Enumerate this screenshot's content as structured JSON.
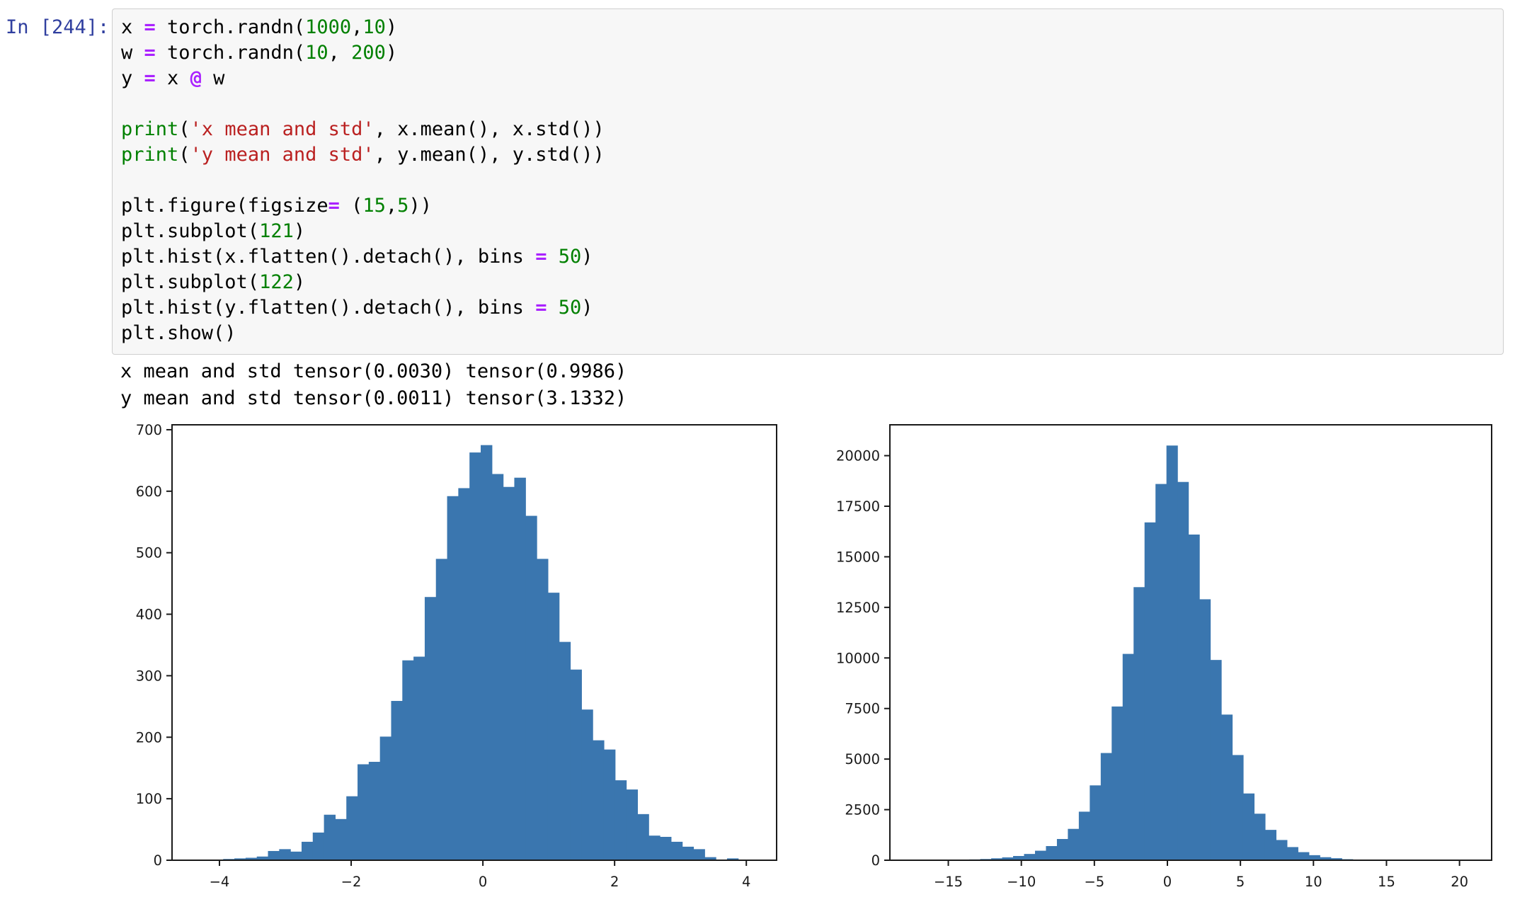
{
  "cell": {
    "prompt": "In [244]:",
    "prompt_color": "#303F9F",
    "token_colors": {
      "p": "#000000",
      "o": "#AA22FF",
      "n": "#008000",
      "b": "#008000",
      "s": "#BA2121"
    },
    "code_lines": [
      [
        [
          "x ",
          "p"
        ],
        [
          "=",
          "o"
        ],
        [
          " torch.randn(",
          "p"
        ],
        [
          "1000",
          "n"
        ],
        [
          ",",
          "p"
        ],
        [
          "10",
          "n"
        ],
        [
          ")",
          "p"
        ]
      ],
      [
        [
          "w ",
          "p"
        ],
        [
          "=",
          "o"
        ],
        [
          " torch.randn(",
          "p"
        ],
        [
          "10",
          "n"
        ],
        [
          ", ",
          "p"
        ],
        [
          "200",
          "n"
        ],
        [
          ")",
          "p"
        ]
      ],
      [
        [
          "y ",
          "p"
        ],
        [
          "=",
          "o"
        ],
        [
          " x ",
          "p"
        ],
        [
          "@",
          "o"
        ],
        [
          " w",
          "p"
        ]
      ],
      [],
      [
        [
          "print",
          "b"
        ],
        [
          "(",
          "p"
        ],
        [
          "'x mean and std'",
          "s"
        ],
        [
          ", x.mean(), x.std())",
          "p"
        ]
      ],
      [
        [
          "print",
          "b"
        ],
        [
          "(",
          "p"
        ],
        [
          "'y mean and std'",
          "s"
        ],
        [
          ", y.mean(), y.std())",
          "p"
        ]
      ],
      [],
      [
        [
          "plt.figure(figsize",
          "p"
        ],
        [
          "=",
          "o"
        ],
        [
          " (",
          "p"
        ],
        [
          "15",
          "n"
        ],
        [
          ",",
          "p"
        ],
        [
          "5",
          "n"
        ],
        [
          "))",
          "p"
        ]
      ],
      [
        [
          "plt.subplot(",
          "p"
        ],
        [
          "121",
          "n"
        ],
        [
          ")",
          "p"
        ]
      ],
      [
        [
          "plt.hist(x.flatten().detach(), bins ",
          "p"
        ],
        [
          "=",
          "o"
        ],
        [
          " ",
          "p"
        ],
        [
          "50",
          "n"
        ],
        [
          ")",
          "p"
        ]
      ],
      [
        [
          "plt.subplot(",
          "p"
        ],
        [
          "122",
          "n"
        ],
        [
          ")",
          "p"
        ]
      ],
      [
        [
          "plt.hist(y.flatten().detach(), bins ",
          "p"
        ],
        [
          "=",
          "o"
        ],
        [
          " ",
          "p"
        ],
        [
          "50",
          "n"
        ],
        [
          ")",
          "p"
        ]
      ],
      [
        [
          "plt.show()",
          "p"
        ]
      ]
    ]
  },
  "output": {
    "stdout": [
      "x mean and std tensor(0.0030) tensor(0.9986)",
      "y mean and std tensor(0.0011) tensor(3.1332)"
    ]
  },
  "chart_data": [
    {
      "type": "bar",
      "subtype": "histogram",
      "title": "",
      "xlabel": "",
      "ylabel": "",
      "legend": null,
      "grid": false,
      "bar_color": "#3A76AF",
      "axis_color": "#1a1a1a",
      "xlim": [
        -4.72,
        4.46
      ],
      "ylim": [
        0,
        708
      ],
      "bins_start": -4.62,
      "bin_width": 0.17,
      "values": [
        0,
        0,
        0,
        1,
        2,
        3,
        4,
        6,
        15,
        18,
        14,
        30,
        45,
        74,
        67,
        104,
        156,
        160,
        201,
        259,
        325,
        331,
        428,
        490,
        592,
        605,
        663,
        675,
        628,
        607,
        622,
        560,
        490,
        435,
        355,
        310,
        245,
        195,
        180,
        130,
        115,
        75,
        40,
        38,
        30,
        22,
        18,
        5,
        0,
        3
      ],
      "xticks": [
        -4,
        -2,
        0,
        2,
        4
      ],
      "xtick_labels": [
        "−4",
        "−2",
        "0",
        "2",
        "4"
      ],
      "yticks": [
        0,
        100,
        200,
        300,
        400,
        500,
        600,
        700
      ],
      "ytick_labels": [
        "0",
        "100",
        "200",
        "300",
        "400",
        "500",
        "600",
        "700"
      ]
    },
    {
      "type": "bar",
      "subtype": "histogram",
      "title": "",
      "xlabel": "",
      "ylabel": "",
      "legend": null,
      "grid": false,
      "bar_color": "#3A76AF",
      "axis_color": "#1a1a1a",
      "xlim": [
        -19.0,
        22.2
      ],
      "ylim": [
        0,
        21525
      ],
      "bins_start": -17.3,
      "bin_width": 0.75,
      "values": [
        2,
        1,
        3,
        5,
        15,
        40,
        60,
        95,
        140,
        210,
        310,
        470,
        700,
        1050,
        1550,
        2400,
        3700,
        5300,
        7600,
        10200,
        13500,
        16700,
        18600,
        20500,
        18700,
        16100,
        12900,
        9900,
        7200,
        5200,
        3300,
        2300,
        1500,
        1000,
        650,
        400,
        250,
        150,
        100,
        50,
        30,
        15,
        8,
        4,
        2,
        1,
        0,
        1,
        0,
        1
      ],
      "xticks": [
        -15,
        -10,
        -5,
        0,
        5,
        10,
        15,
        20
      ],
      "xtick_labels": [
        "−15",
        "−10",
        "−5",
        "0",
        "5",
        "10",
        "15",
        "20"
      ],
      "yticks": [
        0,
        2500,
        5000,
        7500,
        10000,
        12500,
        15000,
        17500,
        20000
      ],
      "ytick_labels": [
        "0",
        "2500",
        "5000",
        "7500",
        "10000",
        "12500",
        "15000",
        "17500",
        "20000"
      ]
    }
  ]
}
